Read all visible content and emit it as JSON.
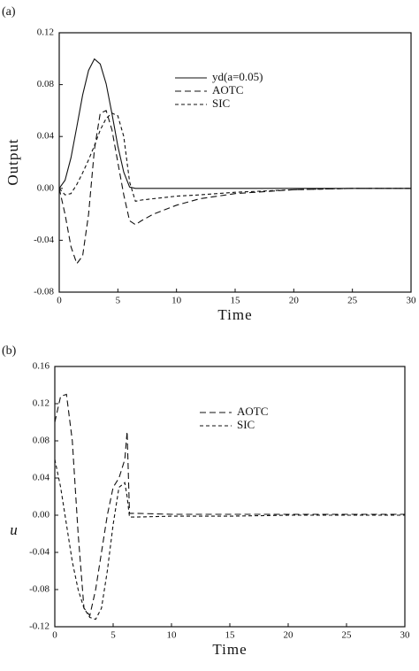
{
  "chart_data": [
    {
      "type": "line",
      "panel_label": "(a)",
      "xlabel": "Time",
      "ylabel": "Output",
      "x": [
        0,
        0.5,
        1,
        1.5,
        2,
        2.5,
        3,
        3.5,
        4,
        4.5,
        5,
        5.5,
        6,
        6.5,
        7,
        8,
        10,
        12,
        15,
        20,
        25,
        30
      ],
      "series": [
        {
          "name": "yd(a=0.05)",
          "color": "#111",
          "dash": "solid",
          "values": [
            0,
            0.0063,
            0.0236,
            0.0475,
            0.072,
            0.091,
            0.0998,
            0.0959,
            0.0806,
            0.0575,
            0.0326,
            0.0125,
            0.001,
            0,
            0,
            0,
            0,
            0,
            0,
            0,
            0,
            0
          ]
        },
        {
          "name": "AOTC",
          "color": "#111",
          "dash": "long",
          "values": [
            0,
            -0.02,
            -0.045,
            -0.058,
            -0.052,
            -0.02,
            0.03,
            0.058,
            0.06,
            0.045,
            0.02,
            -0.005,
            -0.025,
            -0.028,
            -0.025,
            -0.02,
            -0.013,
            -0.008,
            -0.004,
            -0.001,
            0,
            0
          ]
        },
        {
          "name": "SIC",
          "color": "#111",
          "dash": "short",
          "values": [
            0,
            -0.005,
            -0.004,
            0.003,
            0.012,
            0.022,
            0.033,
            0.045,
            0.054,
            0.058,
            0.056,
            0.04,
            0.005,
            -0.01,
            -0.009,
            -0.008,
            -0.006,
            -0.005,
            -0.003,
            -0.001,
            0,
            0
          ]
        }
      ],
      "xlim": [
        0,
        30
      ],
      "xticks": [
        0,
        5,
        10,
        15,
        20,
        25,
        30
      ],
      "ylim": [
        -0.08,
        0.12
      ],
      "yticks": [
        -0.08,
        -0.04,
        {
          "value": 0,
          "label": "0.00"
        },
        0.04,
        0.08,
        0.12
      ]
    },
    {
      "type": "line",
      "panel_label": "(b)",
      "xlabel": "Time",
      "ylabel": "u",
      "x": [
        0,
        0.5,
        1,
        1.5,
        2,
        2.5,
        3,
        3.5,
        4,
        4.5,
        5,
        5.5,
        6,
        6.2,
        6.4,
        7,
        10,
        15,
        20,
        25,
        30
      ],
      "series": [
        {
          "name": "AOTC",
          "color": "#111",
          "dash": "long",
          "values": [
            0.1,
            0.128,
            0.13,
            0.08,
            -0.02,
            -0.1,
            -0.108,
            -0.08,
            -0.04,
            0,
            0.03,
            0.04,
            0.06,
            0.09,
            0.002,
            0.002,
            0.001,
            0.001,
            0.001,
            0.001,
            0.001
          ]
        },
        {
          "name": "SIC",
          "color": "#111",
          "dash": "short",
          "values": [
            0.06,
            0.03,
            -0.01,
            -0.05,
            -0.08,
            -0.1,
            -0.11,
            -0.112,
            -0.1,
            -0.06,
            -0.01,
            0.03,
            0.035,
            0.02,
            -0.002,
            -0.002,
            -0.001,
            -0.001,
            0,
            0,
            0
          ]
        }
      ],
      "xlim": [
        0,
        30
      ],
      "xticks": [
        0,
        5,
        10,
        15,
        20,
        25,
        30
      ],
      "ylim": [
        -0.12,
        0.16
      ],
      "yticks": [
        -0.12,
        -0.08,
        -0.04,
        {
          "value": 0,
          "label": "0.00"
        },
        0.04,
        0.08,
        0.12,
        0.16
      ]
    }
  ]
}
